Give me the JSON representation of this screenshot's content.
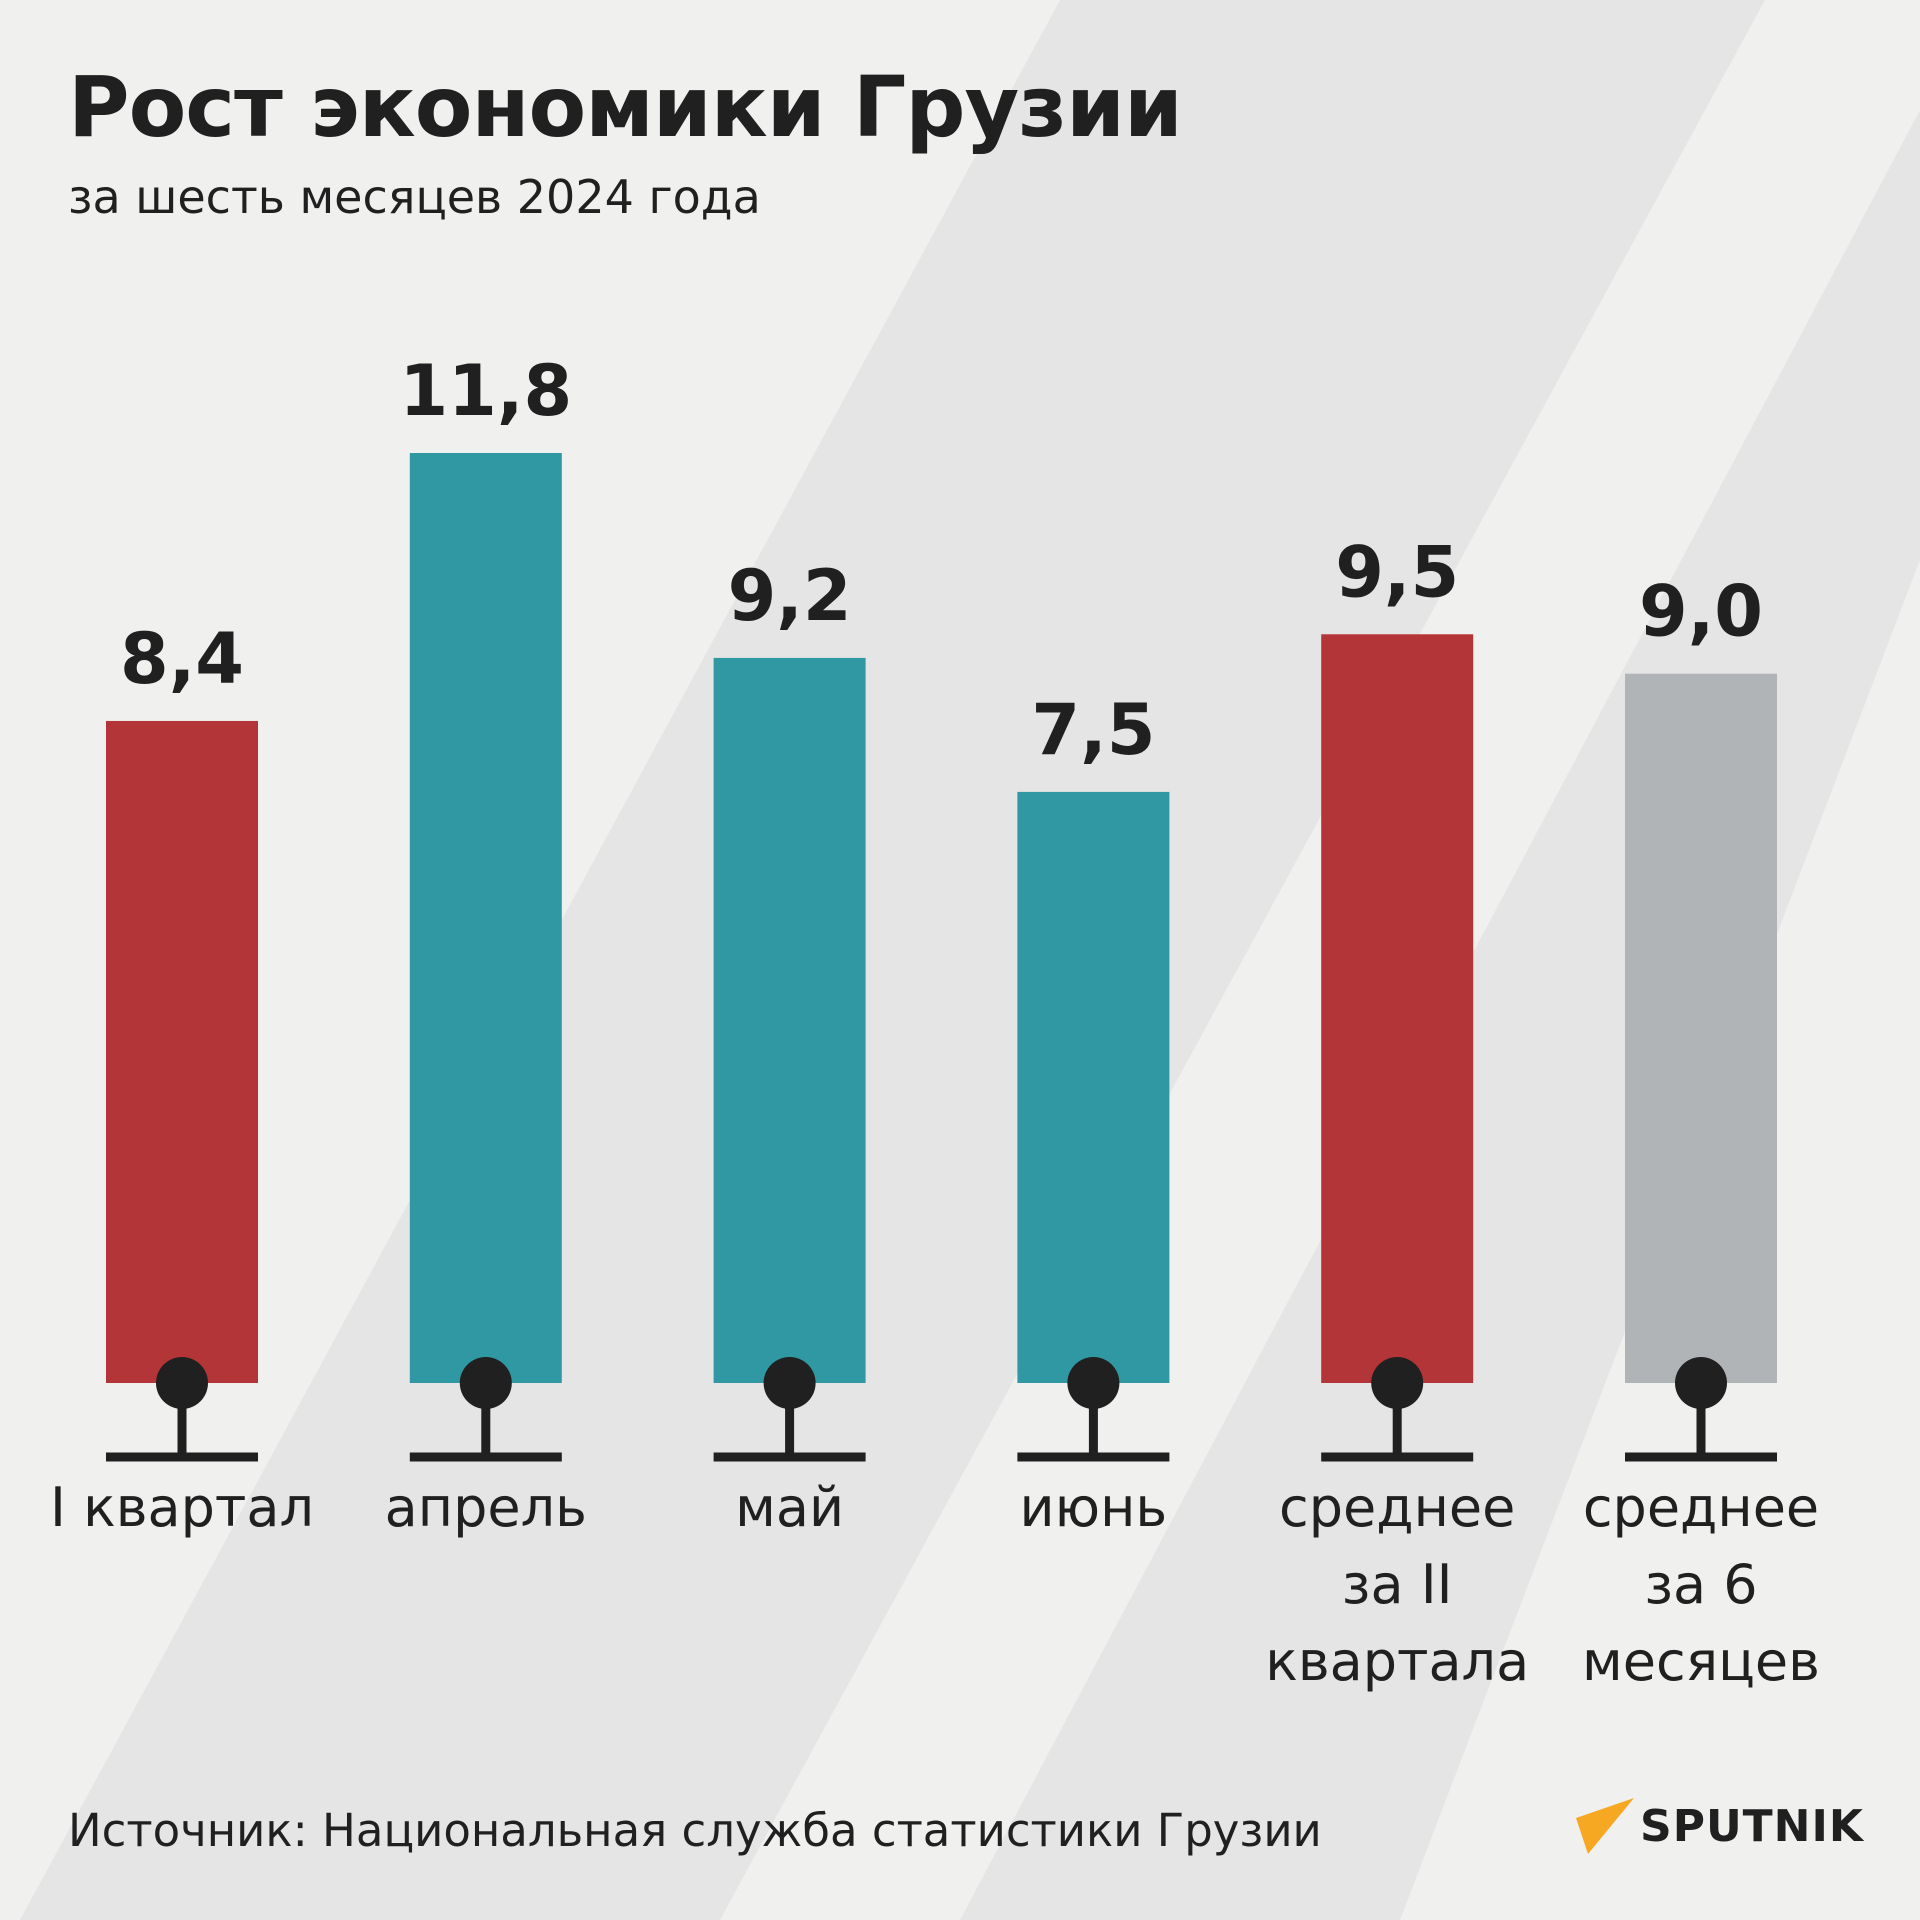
{
  "header": {
    "title": "Рост экономики Грузии",
    "subtitle": "за шесть месяцев 2024 года"
  },
  "footer": {
    "source": "Источник: Национальная служба статистики Грузии",
    "logo": "SPUTNIK"
  },
  "colors": {
    "background": "#f0f0ef",
    "stripe": "#e5e5e5",
    "red": "#b43538",
    "teal": "#3098a2",
    "grey": "#b1b4b6",
    "dark": "#1f201f",
    "logo_accent": "#f7a823"
  },
  "chart_data": {
    "type": "bar",
    "title": "Рост экономики Грузии",
    "subtitle": "за шесть месяцев 2024 года",
    "categories": [
      [
        "I квартал"
      ],
      [
        "апрель"
      ],
      [
        "май"
      ],
      [
        "июнь"
      ],
      [
        "среднее",
        "за II",
        "квартала"
      ],
      [
        "среднее",
        "за 6",
        "месяцев"
      ]
    ],
    "values": [
      8.4,
      11.8,
      9.2,
      7.5,
      9.5,
      9.0
    ],
    "value_labels": [
      "8,4",
      "11,8",
      "9,2",
      "7,5",
      "9,5",
      "9,0"
    ],
    "bar_colors": [
      "#b43538",
      "#3098a2",
      "#3098a2",
      "#3098a2",
      "#b43538",
      "#b1b4b6"
    ],
    "ylim": [
      0,
      11.8
    ],
    "grid": false,
    "legend": "none"
  }
}
